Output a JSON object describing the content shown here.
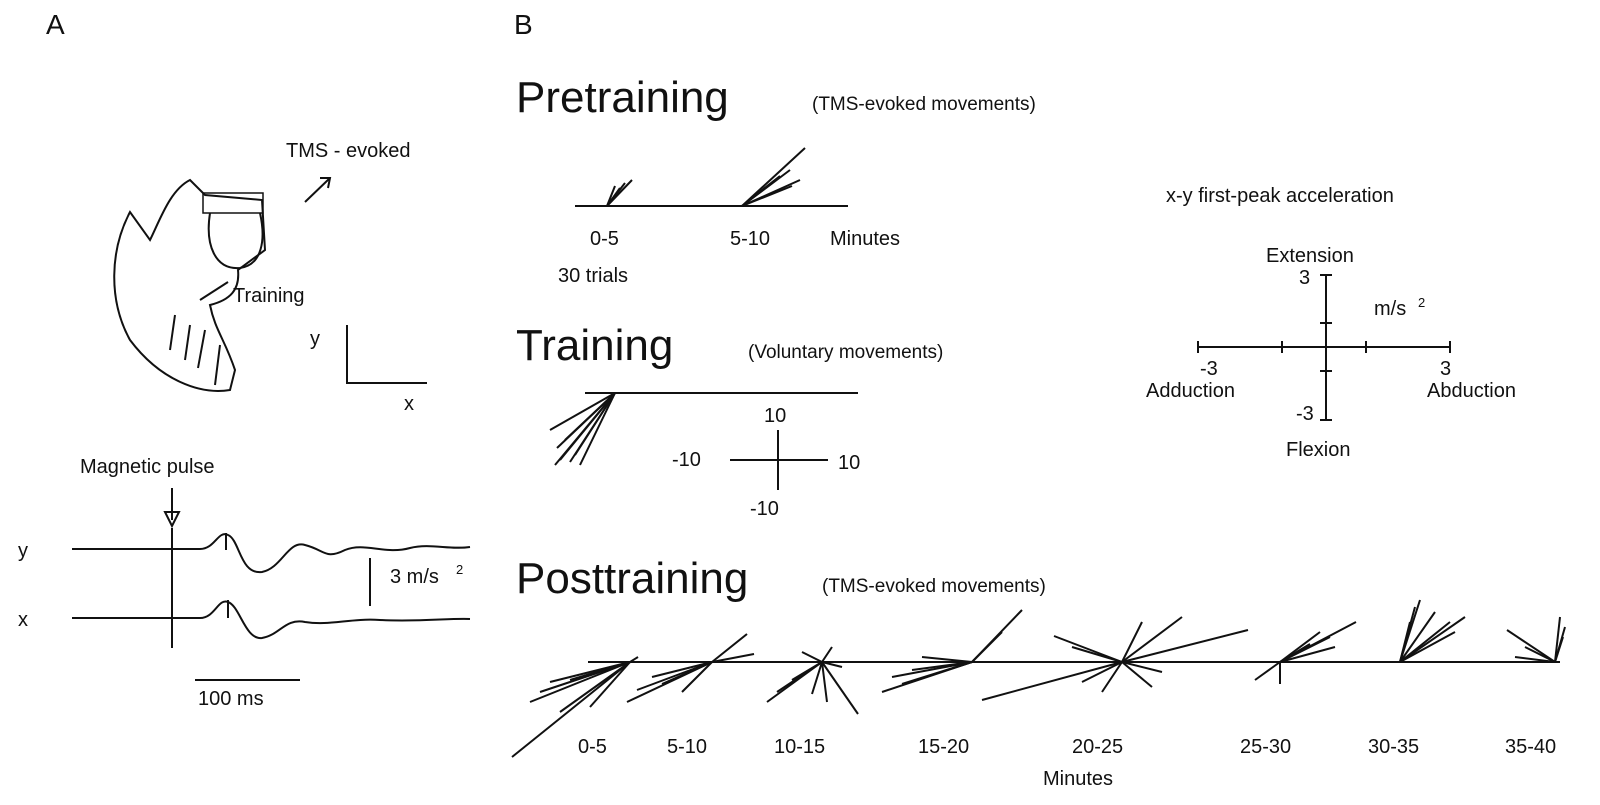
{
  "panel_a": {
    "label": "A",
    "tms_evoked": "TMS - evoked",
    "training": "Training",
    "axis_y": "y",
    "axis_x": "x",
    "magnetic_pulse": "Magnetic pulse",
    "trace_y": "y",
    "trace_x": "x",
    "scale": "3 m/s",
    "scale_sup": "2",
    "time_scale": "100 ms"
  },
  "panel_b": {
    "label": "B",
    "pretraining": {
      "title": "Pretraining",
      "subtitle": "(TMS-evoked movements)",
      "bins": [
        "0-5",
        "5-10"
      ],
      "unit": "Minutes",
      "trials": "30 trials"
    },
    "training": {
      "title": "Training",
      "subtitle": "(Voluntary  movements)",
      "scale": {
        "top": "10",
        "bottom": "-10",
        "left": "-10",
        "right": "10"
      }
    },
    "posttraining": {
      "title": "Posttraining",
      "subtitle": "(TMS-evoked movements)",
      "bins": [
        "0-5",
        "5-10",
        "10-15",
        "15-20",
        "20-25",
        "25-30",
        "30-35",
        "35-40"
      ],
      "unit": "Minutes"
    },
    "legend": {
      "title": "x-y first-peak acceleration",
      "extension": "Extension",
      "flexion": "Flexion",
      "adduction": "Adduction",
      "abduction": "Abduction",
      "top": "3",
      "bottom": "-3",
      "left": "-3",
      "right": "3",
      "unit": "m/s",
      "unit_sup": "2"
    }
  }
}
